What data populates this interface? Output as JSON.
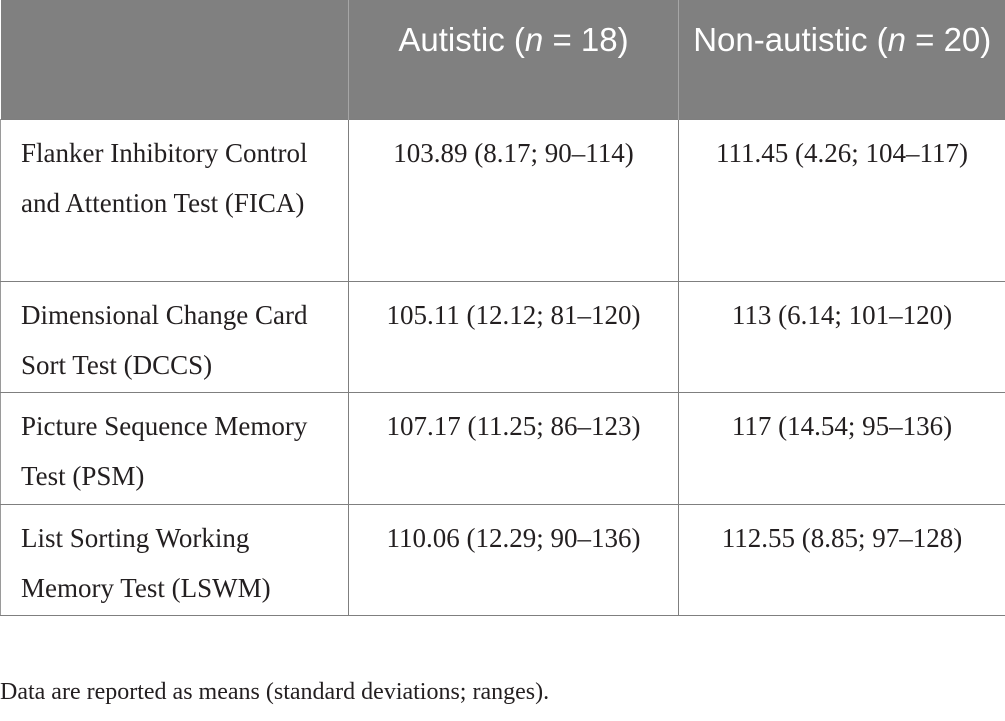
{
  "table": {
    "headers": [
      {
        "parts": [],
        "text": ""
      },
      {
        "pre": "Autistic (",
        "n": "n",
        "post": " = 18)"
      },
      {
        "pre": "Non-autistic (",
        "n": "n",
        "post": " = 20)"
      }
    ],
    "rows": [
      {
        "measure": "Flanker Inhibitory Control and Attention Test (FICA)",
        "autistic": "103.89 (8.17; 90–114)",
        "non_autistic": "111.45 (4.26; 104–117)"
      },
      {
        "measure": "Dimensional Change Card Sort Test (DCCS)",
        "autistic": "105.11 (12.12; 81–120)",
        "non_autistic": "113 (6.14; 101–120)"
      },
      {
        "measure": "Picture Sequence Memory Test (PSM)",
        "autistic": "107.17 (11.25; 86–123)",
        "non_autistic": "117 (14.54; 95–136)"
      },
      {
        "measure": "List Sorting Working Memory Test (LSWM)",
        "autistic": "110.06 (12.29; 90–136)",
        "non_autistic": "112.55 (8.85; 97–128)"
      }
    ]
  },
  "footnote": "Data are reported as means (standard deviations; ranges).",
  "colors": {
    "header_bg": "#808080",
    "header_text": "#ffffff",
    "body_text": "#231f20",
    "grid": "#7f7f7f"
  }
}
